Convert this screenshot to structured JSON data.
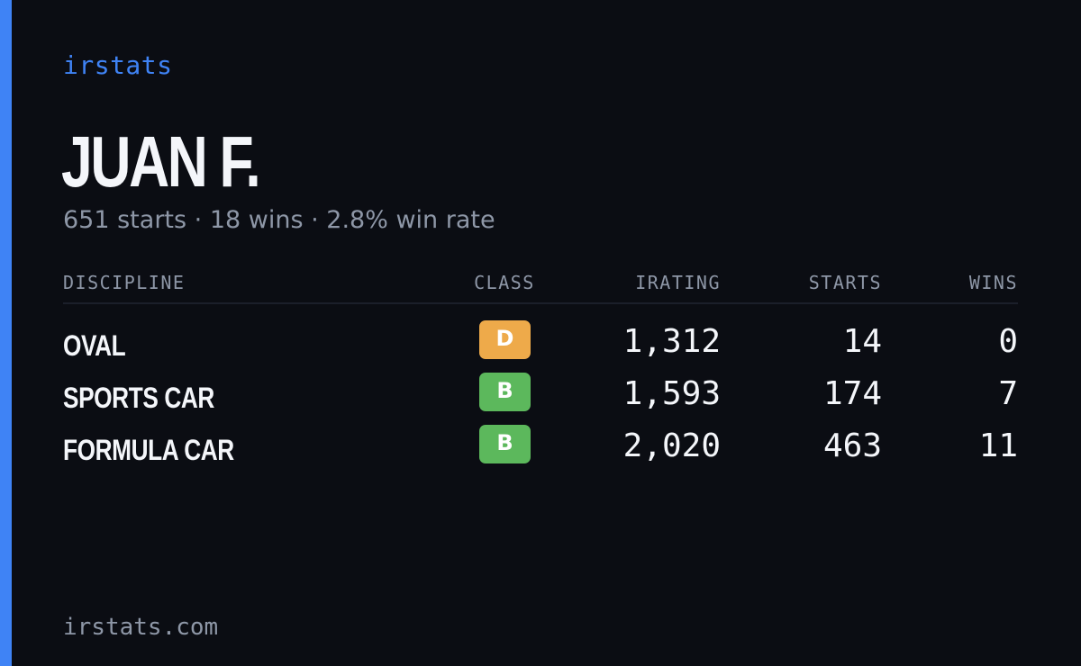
{
  "brand": "irstats",
  "player": {
    "name": "JUAN F.",
    "summary": "651 starts · 18 wins · 2.8% win rate"
  },
  "table": {
    "headers": {
      "discipline": "DISCIPLINE",
      "class": "CLASS",
      "irating": "IRATING",
      "starts": "STARTS",
      "wins": "WINS"
    },
    "rows": [
      {
        "discipline": "OVAL",
        "class": "D",
        "class_color": "#eeaa4a",
        "irating": "1,312",
        "starts": "14",
        "wins": "0"
      },
      {
        "discipline": "SPORTS CAR",
        "class": "B",
        "class_color": "#5cb85c",
        "irating": "1,593",
        "starts": "174",
        "wins": "7"
      },
      {
        "discipline": "FORMULA CAR",
        "class": "B",
        "class_color": "#5cb85c",
        "irating": "2,020",
        "starts": "463",
        "wins": "11"
      }
    ]
  },
  "footer": "irstats.com",
  "colors": {
    "accent": "#3f83f5",
    "background": "#0b0d13"
  }
}
